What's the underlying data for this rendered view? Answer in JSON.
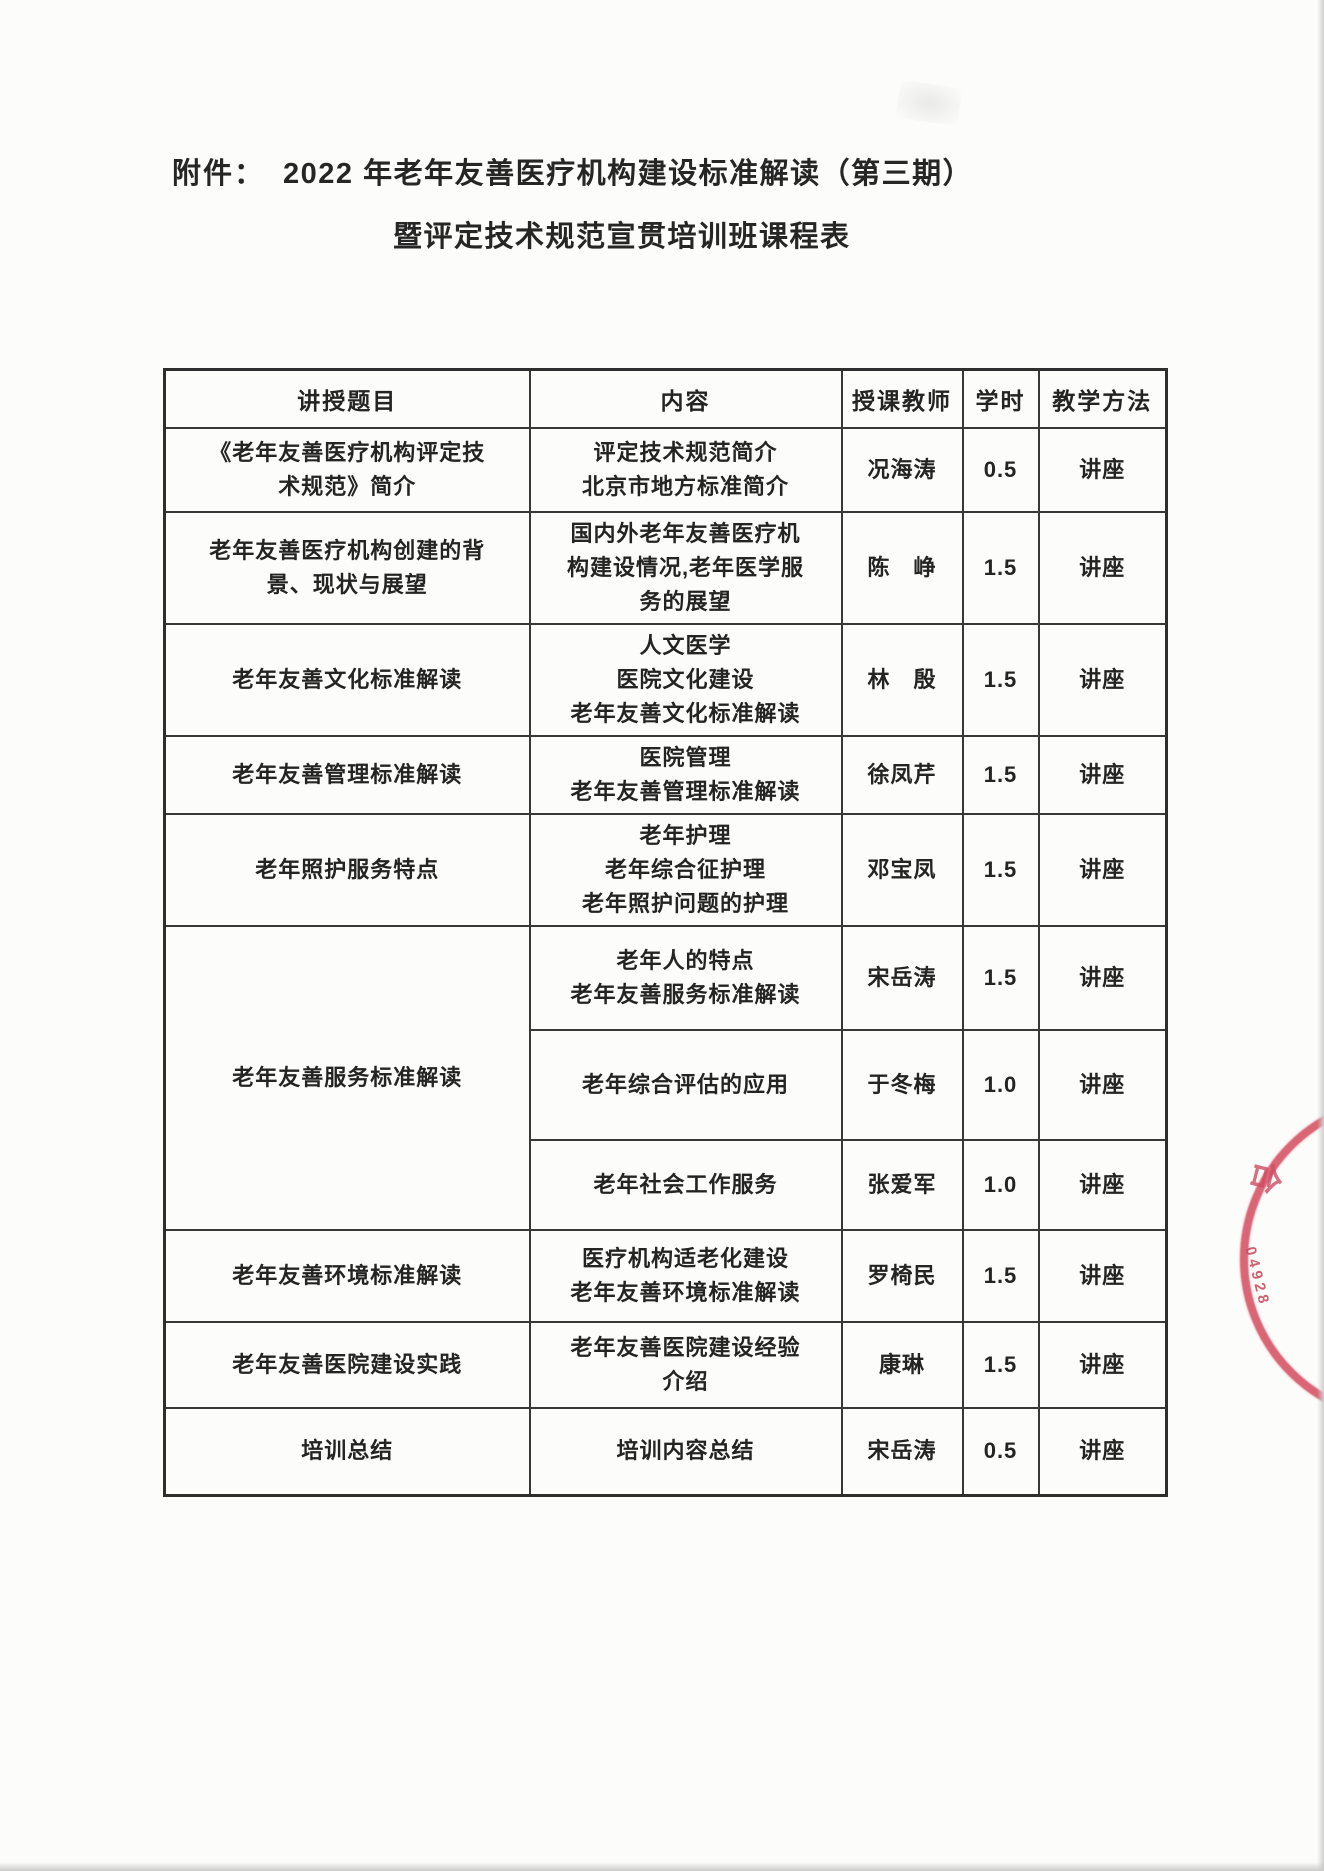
{
  "title": {
    "attachment_label": "附件：",
    "line1": "2022 年老年友善医疗机构建设标准解读（第三期）",
    "line2": "暨评定技术规范宣贯培训班课程表"
  },
  "table": {
    "headers": [
      "讲授题目",
      "内容",
      "授课教师",
      "学时",
      "教学方法"
    ],
    "rows": [
      {
        "topic_lines": [
          "《老年友善医疗机构评定技",
          "术规范》简介"
        ],
        "content_lines": [
          "评定技术规范简介",
          "北京市地方标准简介"
        ],
        "teacher": "况海涛",
        "hours": "0.5",
        "method": "讲座"
      },
      {
        "topic_lines": [
          "老年友善医疗机构创建的背",
          "景、现状与展望"
        ],
        "content_lines": [
          "国内外老年友善医疗机",
          "构建设情况,老年医学服",
          "务的展望"
        ],
        "teacher": "陈　峥",
        "hours": "1.5",
        "method": "讲座"
      },
      {
        "topic_lines": [
          "老年友善文化标准解读"
        ],
        "content_lines": [
          "人文医学",
          "医院文化建设",
          "老年友善文化标准解读"
        ],
        "teacher": "林　殷",
        "hours": "1.5",
        "method": "讲座"
      },
      {
        "topic_lines": [
          "老年友善管理标准解读"
        ],
        "content_lines": [
          "医院管理",
          "老年友善管理标准解读"
        ],
        "teacher": "徐凤芹",
        "hours": "1.5",
        "method": "讲座"
      },
      {
        "topic_lines": [
          "老年照护服务特点"
        ],
        "content_lines": [
          "老年护理",
          "老年综合征护理",
          "老年照护问题的护理"
        ],
        "teacher": "邓宝凤",
        "hours": "1.5",
        "method": "讲座"
      },
      {
        "topic_lines": [
          "老年友善服务标准解读"
        ],
        "topic_rowspan": 3,
        "content_lines": [
          "老年人的特点",
          "老年友善服务标准解读"
        ],
        "teacher": "宋岳涛",
        "hours": "1.5",
        "method": "讲座"
      },
      {
        "skip_topic": true,
        "content_lines": [
          "老年综合评估的应用"
        ],
        "teacher": "于冬梅",
        "hours": "1.0",
        "method": "讲座"
      },
      {
        "skip_topic": true,
        "content_lines": [
          "老年社会工作服务"
        ],
        "teacher": "张爱军",
        "hours": "1.0",
        "method": "讲座"
      },
      {
        "topic_lines": [
          "老年友善环境标准解读"
        ],
        "content_lines": [
          "医疗机构适老化建设",
          "老年友善环境标准解读"
        ],
        "teacher": "罗椅民",
        "hours": "1.5",
        "method": "讲座"
      },
      {
        "topic_lines": [
          "老年友善医院建设实践"
        ],
        "content_lines": [
          "老年友善医院建设经验",
          "介绍"
        ],
        "teacher": "康琳",
        "hours": "1.5",
        "method": "讲座"
      },
      {
        "topic_lines": [
          "培训总结"
        ],
        "content_lines": [
          "培训内容总结"
        ],
        "teacher": "宋岳涛",
        "hours": "0.5",
        "method": "讲座"
      }
    ]
  },
  "stamp": {
    "digits": "04928",
    "character": "合",
    "color": "#d03e54"
  }
}
